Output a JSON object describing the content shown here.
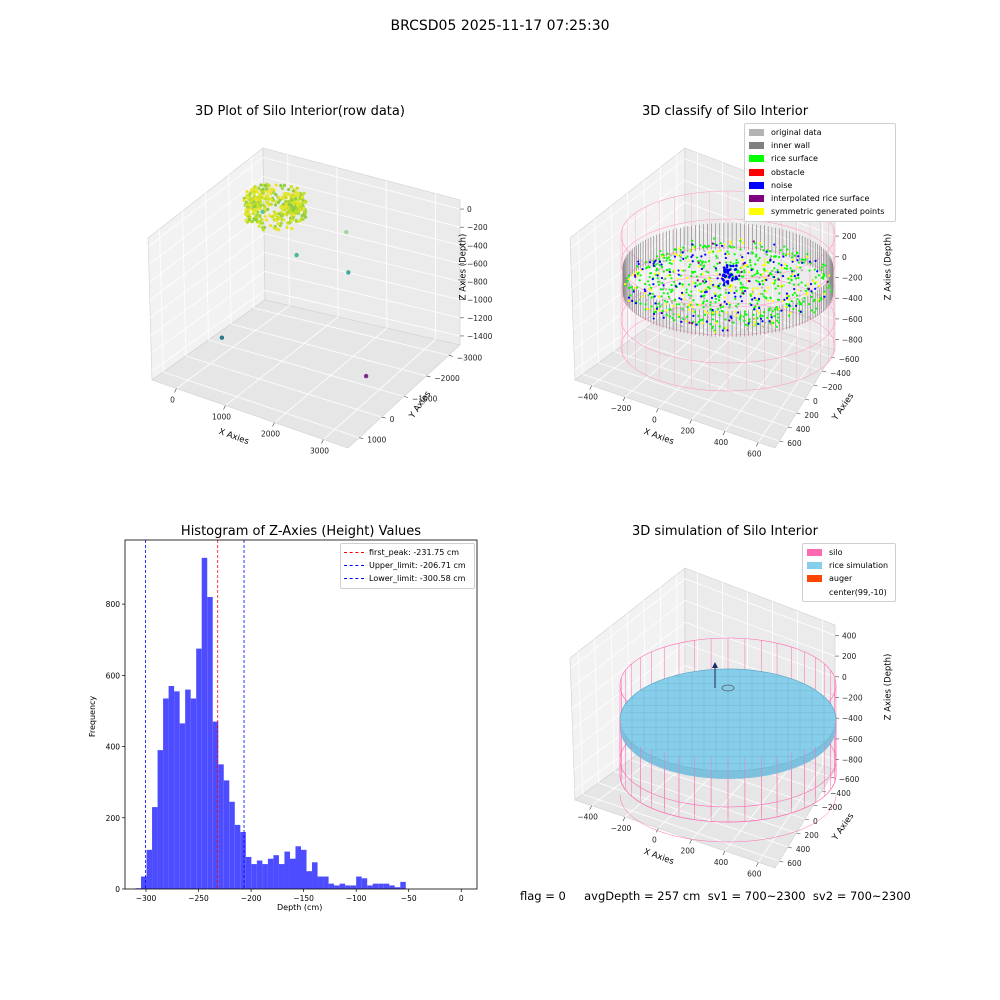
{
  "suptitle": "BRCSD05 2025-11-17 07:25:30",
  "chart_data": [
    {
      "type": "scatter",
      "subtype": "3d",
      "title": "3D Plot of Silo Interior(row data)",
      "xlabel": "X Axies",
      "ylabel": "Y Axies",
      "zlabel": "Z Axies (Depth)",
      "x_ticks": [
        "0",
        "1000",
        "2000",
        "3000"
      ],
      "y_ticks": [
        "1000",
        "0",
        "−1000",
        "−2000",
        "−3000"
      ],
      "z_ticks": [
        "0",
        "−200",
        "−400",
        "−600",
        "−800",
        "−1000",
        "−1200",
        "−1400"
      ],
      "outlier_points": [
        {
          "x": 100,
          "y": 300,
          "z": -420,
          "color": "#5ec2a3"
        },
        {
          "x": 1200,
          "y": -300,
          "z": -650,
          "color": "#4cb89b"
        },
        {
          "x": 2100,
          "y": 100,
          "z": -380,
          "color": "#9ed6a0"
        },
        {
          "x": 2700,
          "y": -900,
          "z": -560,
          "color": "#3fa99a"
        },
        {
          "x": 900,
          "y": -2800,
          "z": -1100,
          "color": "#27788c"
        },
        {
          "x": 3600,
          "y": -1800,
          "z": -1400,
          "color": "#7a2e8c"
        }
      ]
    },
    {
      "type": "scatter",
      "subtype": "3d",
      "title": "3D classify of Silo Interior",
      "xlabel": "X Axies",
      "ylabel": "Y Axies",
      "zlabel": "Z Axies (Depth)",
      "x_ticks": [
        "−400",
        "−200",
        "0",
        "200",
        "400",
        "600"
      ],
      "y_ticks": [
        "600",
        "400",
        "200",
        "0",
        "−200",
        "−400",
        "−600"
      ],
      "z_ticks": [
        "400",
        "200",
        "0",
        "−200",
        "−400",
        "−600",
        "−800"
      ],
      "legend": [
        {
          "label": "original data",
          "color": "#b3b3b3"
        },
        {
          "label": "inner wall",
          "color": "#808080"
        },
        {
          "label": "rice surface",
          "color": "#00ff00"
        },
        {
          "label": "obstacle",
          "color": "#ff0000"
        },
        {
          "label": "noise",
          "color": "#0000ff"
        },
        {
          "label": "interpolated rice surface",
          "color": "#800080"
        },
        {
          "label": "symmetric generated points",
          "color": "#ffff00"
        }
      ]
    },
    {
      "type": "bar",
      "subtype": "histogram",
      "title": "Histogram of Z-Axies (Height) Values",
      "xlabel": "Depth (cm)",
      "ylabel": "Frequency",
      "xlim": [
        -320,
        15
      ],
      "ylim": [
        0,
        980
      ],
      "x_ticks": [
        -300,
        -250,
        -200,
        -150,
        -100,
        -50,
        0
      ],
      "x_tick_labels": [
        "−300",
        "−250",
        "−200",
        "−150",
        "−100",
        "−50",
        "0"
      ],
      "y_ticks": [
        0,
        200,
        400,
        600,
        800
      ],
      "bin_start": -310,
      "bin_width": 5.25,
      "bar_color": "#4d4dff",
      "values": [
        2,
        35,
        110,
        230,
        390,
        535,
        570,
        555,
        465,
        560,
        535,
        675,
        930,
        820,
        470,
        350,
        305,
        245,
        180,
        160,
        90,
        70,
        80,
        70,
        85,
        95,
        70,
        105,
        85,
        120,
        110,
        50,
        75,
        35,
        35,
        15,
        10,
        15,
        10,
        10,
        35,
        30,
        10,
        15,
        15,
        15,
        10,
        5,
        20
      ],
      "lines": [
        {
          "label": "first_peak: -231.75 cm",
          "x": -231.75,
          "color": "#ff0000"
        },
        {
          "label": "Upper_limit: -206.71 cm",
          "x": -206.71,
          "color": "#0000ff"
        },
        {
          "label": "Lower_limit: -300.58 cm",
          "x": -300.58,
          "color": "#0000ff"
        }
      ]
    },
    {
      "type": "surface",
      "subtype": "3d",
      "title": "3D simulation of Silo Interior",
      "xlabel": "X Axies",
      "ylabel": "Y Axies",
      "zlabel": "Z Axies (Depth)",
      "x_ticks": [
        "−400",
        "−200",
        "0",
        "200",
        "400",
        "600"
      ],
      "y_ticks": [
        "600",
        "400",
        "200",
        "0",
        "−200",
        "−400",
        "−600"
      ],
      "z_ticks": [
        "400",
        "200",
        "0",
        "−200",
        "−400",
        "−600",
        "−800"
      ],
      "legend": [
        {
          "label": "silo",
          "color": "#ff69b4"
        },
        {
          "label": "rice simulation",
          "color": "#87ceeb"
        },
        {
          "label": "auger",
          "color": "#ff4500"
        },
        {
          "label": "center(99,-10)",
          "color": "#ffffff"
        }
      ]
    }
  ],
  "footer": "flag = 0     avgDepth = 257 cm  sv1 = 700~2300  sv2 = 700~2300"
}
